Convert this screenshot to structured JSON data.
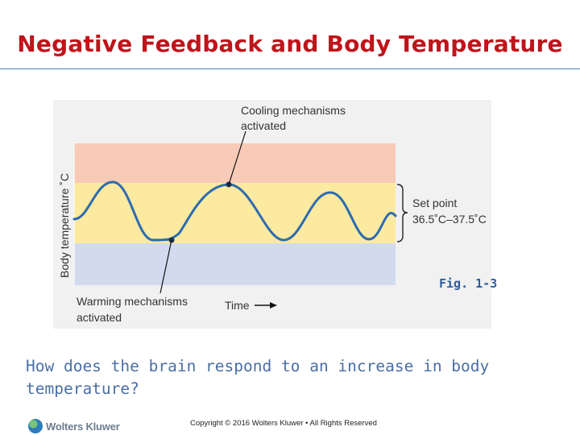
{
  "slide": {
    "title": "Negative Feedback and Body Temperature",
    "question": "How does the brain respond to an increase in body temperature?",
    "copyright": "Copyright © 2016 Wolters Kluwer • All Rights Reserved",
    "logo_text": "Wolters Kluwer",
    "logo_icon": "wolters-kluwer-logo-icon"
  },
  "diagram": {
    "y_axis_label": "Body temperature ˚C",
    "x_axis_label": "Time",
    "cooling_label_line1": "Cooling mechanisms",
    "cooling_label_line2": "activated",
    "warming_label_line1": "Warming mechanisms",
    "warming_label_line2": "activated",
    "set_point_line1": "Set point",
    "set_point_line2": "36.5˚C–37.5˚C",
    "fig_label": "Fig. 1-3",
    "colors": {
      "high_band": "#f7cbb8",
      "set_band": "#fbeaa0",
      "low_band": "#d2dbee",
      "curve": "#2e6bb0",
      "title": "#c0141b",
      "question": "#4a6fa5"
    }
  }
}
